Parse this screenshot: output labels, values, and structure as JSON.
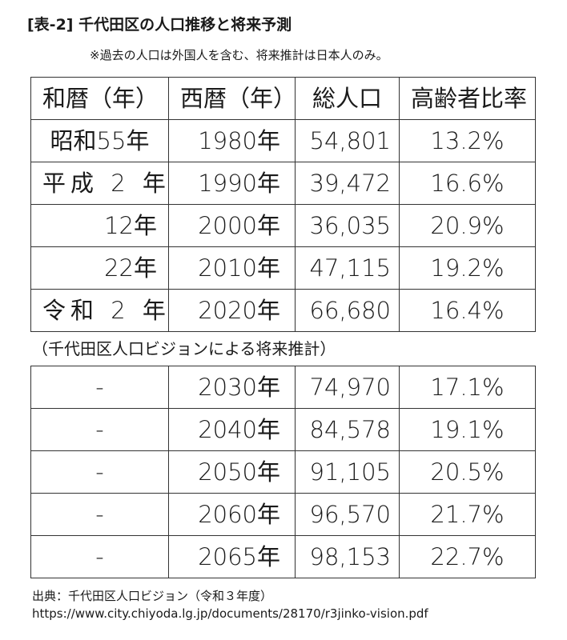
{
  "title": "[表-2] 千代田区の人口推移と将来予測",
  "note": "※過去の人口は外国人を含む、将来推計は日本人のみ。",
  "headers": [
    "和暦（年）",
    "西暦（年）",
    "総人口",
    "高齢者比率"
  ],
  "actual_rows": [
    {
      "era": "昭和55年",
      "year": "1980年",
      "population": "54,801",
      "rate": "13.2%"
    },
    {
      "era": "平成 2 年",
      "year": "1990年",
      "population": "39,472",
      "rate": "16.6%"
    },
    {
      "era": "12年",
      "year": "2000年",
      "population": "36,035",
      "rate": "20.9%"
    },
    {
      "era": "22年",
      "year": "2010年",
      "population": "47,115",
      "rate": "19.2%"
    },
    {
      "era": "令和 2 年",
      "year": "2020年",
      "population": "66,680",
      "rate": "16.4%"
    }
  ],
  "projection_heading": "（千代田区人口ビジョンによる将来推計）",
  "projection_rows": [
    {
      "era": "-",
      "year": "2030年",
      "population": "74,970",
      "rate": "17.1%"
    },
    {
      "era": "-",
      "year": "2040年",
      "population": "84,578",
      "rate": "19.1%"
    },
    {
      "era": "-",
      "year": "2050年",
      "population": "91,105",
      "rate": "20.5%"
    },
    {
      "era": "-",
      "year": "2060年",
      "population": "96,570",
      "rate": "21.7%"
    },
    {
      "era": "-",
      "year": "2065年",
      "population": "98,153",
      "rate": "22.7%"
    }
  ],
  "source": {
    "line1": "出典：千代田区人口ビジョン（令和３年度）",
    "line2": "https://www.city.chiyoda.lg.jp/documents/28170/r3jinko-vision.pdf"
  }
}
